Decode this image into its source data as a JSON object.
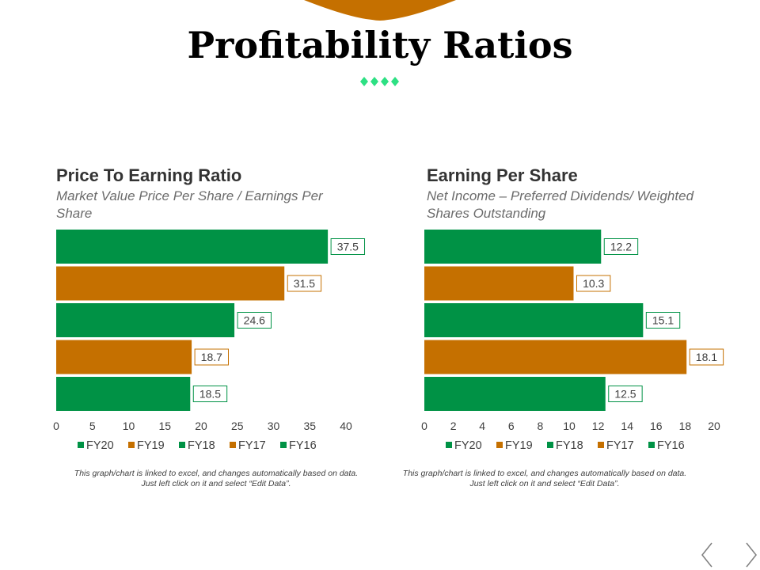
{
  "page": {
    "title": "Profitability Ratios"
  },
  "colors": {
    "green": "#009245",
    "orange": "#c57000",
    "accent_diamond": "#2de083"
  },
  "chart_data": [
    {
      "type": "bar",
      "orientation": "horizontal",
      "title": "Price To Earning Ratio",
      "subtitle": "Market Value Price Per Share / Earnings Per Share",
      "categories": [
        "FY20",
        "FY19",
        "FY18",
        "FY17",
        "FY16"
      ],
      "values": [
        37.5,
        31.5,
        24.6,
        18.7,
        18.5
      ],
      "bar_colors": [
        "green",
        "orange",
        "green",
        "orange",
        "green"
      ],
      "xlim": [
        0,
        40
      ],
      "x_ticks": [
        0,
        5,
        10,
        15,
        20,
        25,
        30,
        35,
        40
      ],
      "legend": [
        {
          "label": "FY20",
          "color": "green"
        },
        {
          "label": "FY19",
          "color": "orange"
        },
        {
          "label": "FY18",
          "color": "green"
        },
        {
          "label": "FY17",
          "color": "orange"
        },
        {
          "label": "FY16",
          "color": "green"
        }
      ],
      "legend_position": "bottom",
      "grid": false,
      "note": "This graph/chart is linked to excel, and changes automatically based on data. Just left click on it and select “Edit Data”."
    },
    {
      "type": "bar",
      "orientation": "horizontal",
      "title": "Earning Per Share",
      "subtitle": "Net Income – Preferred Dividends/ Weighted Shares Outstanding",
      "categories": [
        "FY20",
        "FY19",
        "FY18",
        "FY17",
        "FY16"
      ],
      "values": [
        12.2,
        10.3,
        15.1,
        18.1,
        12.5
      ],
      "bar_colors": [
        "green",
        "orange",
        "green",
        "orange",
        "green"
      ],
      "xlim": [
        0,
        20
      ],
      "x_ticks": [
        0,
        2,
        4,
        6,
        8,
        10,
        12,
        14,
        16,
        18,
        20
      ],
      "legend": [
        {
          "label": "FY20",
          "color": "green"
        },
        {
          "label": "FY19",
          "color": "orange"
        },
        {
          "label": "FY18",
          "color": "green"
        },
        {
          "label": "FY17",
          "color": "orange"
        },
        {
          "label": "FY16",
          "color": "green"
        }
      ],
      "legend_position": "bottom",
      "grid": false,
      "note": "This graph/chart is linked to excel, and changes automatically based on data. Just left click on it and select “Edit Data”."
    }
  ],
  "nav": {
    "prev_icon": "chevron-left-icon",
    "next_icon": "chevron-right-icon"
  }
}
